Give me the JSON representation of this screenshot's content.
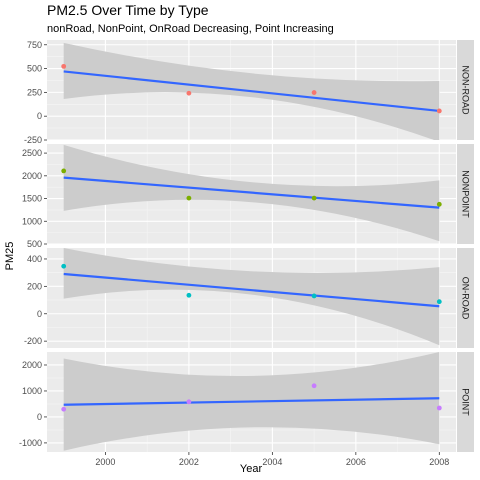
{
  "chart_data": {
    "type": "scatter",
    "title": "PM2.5 Over Time by Type",
    "subtitle": "nonRoad, NonPoint, OnRoad Decreasing, Point Increasing",
    "xlabel": "Year",
    "ylabel": "PM25",
    "xlim": [
      1998.6,
      2008.4
    ],
    "x_ticks": [
      2000,
      2002,
      2004,
      2006,
      2008
    ],
    "grid": true,
    "smooth": "linear fit with confidence band",
    "band_color": "#cccccc",
    "line_color": "#3366ff",
    "facets": [
      {
        "name": "NON-ROAD",
        "color": "#f8766d",
        "ylim": [
          -250,
          800
        ],
        "y_ticks": [
          -250,
          0,
          250,
          500,
          750
        ],
        "points": [
          [
            1999,
            523
          ],
          [
            2002,
            241
          ],
          [
            2005,
            248
          ],
          [
            2008,
            55
          ]
        ],
        "fit": [
          [
            1999,
            470
          ],
          [
            2008,
            55
          ]
        ],
        "band": {
          "upper": [
            [
              1999,
              770
            ],
            [
              2003.5,
              450
            ],
            [
              2008,
              370
            ]
          ],
          "lower": [
            [
              1999,
              180
            ],
            [
              2003.5,
              200
            ],
            [
              2008,
              -270
            ]
          ]
        }
      },
      {
        "name": "NONPOINT",
        "color": "#7cae00",
        "ylim": [
          500,
          2700
        ],
        "y_ticks": [
          500,
          1000,
          1500,
          2000,
          2500
        ],
        "points": [
          [
            1999,
            2108
          ],
          [
            2002,
            1510
          ],
          [
            2005,
            1510
          ],
          [
            2008,
            1373
          ]
        ],
        "fit": [
          [
            1999,
            1960
          ],
          [
            2008,
            1300
          ]
        ],
        "band": {
          "upper": [
            [
              1999,
              2680
            ],
            [
              2003.5,
              1860
            ],
            [
              2008,
              1900
            ]
          ],
          "lower": [
            [
              1999,
              1230
            ],
            [
              2003.5,
              1420
            ],
            [
              2008,
              560
            ]
          ]
        }
      },
      {
        "name": "ON-ROAD",
        "color": "#00bfc4",
        "ylim": [
          -250,
          480
        ],
        "y_ticks": [
          -200,
          0,
          200,
          400
        ],
        "points": [
          [
            1999,
            347
          ],
          [
            2002,
            135
          ],
          [
            2005,
            130
          ],
          [
            2008,
            88
          ]
        ],
        "fit": [
          [
            1999,
            290
          ],
          [
            2008,
            55
          ]
        ],
        "band": {
          "upper": [
            [
              1999,
              480
            ],
            [
              2003.5,
              310
            ],
            [
              2008,
              340
            ]
          ],
          "lower": [
            [
              1999,
              110
            ],
            [
              2003.5,
              140
            ],
            [
              2008,
              -230
            ]
          ]
        }
      },
      {
        "name": "POINT",
        "color": "#c77cff",
        "ylim": [
          -1350,
          2500
        ],
        "y_ticks": [
          -1000,
          0,
          1000,
          2000
        ],
        "points": [
          [
            1999,
            297
          ],
          [
            2002,
            583
          ],
          [
            2005,
            1200
          ],
          [
            2008,
            344
          ]
        ],
        "fit": [
          [
            1999,
            470
          ],
          [
            2008,
            720
          ]
        ],
        "band": {
          "upper": [
            [
              1999,
              2250
            ],
            [
              2003.5,
              1580
            ],
            [
              2008,
              2500
            ]
          ],
          "lower": [
            [
              1999,
              -1300
            ],
            [
              2003.5,
              -400
            ],
            [
              2008,
              -1050
            ]
          ]
        }
      }
    ]
  }
}
